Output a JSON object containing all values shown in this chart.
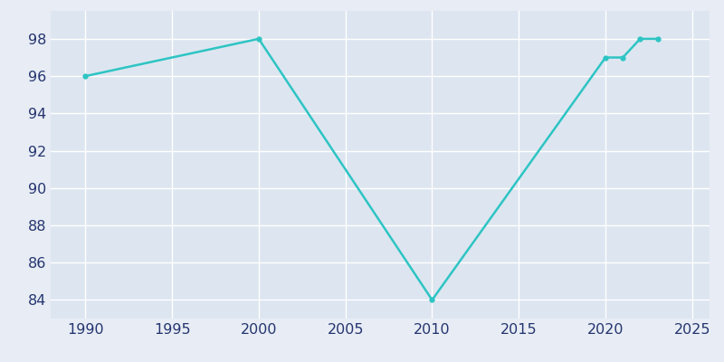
{
  "years": [
    1990,
    2000,
    2010,
    2020,
    2021,
    2022,
    2023
  ],
  "population": [
    96,
    98,
    84,
    97,
    97,
    98,
    98
  ],
  "line_color": "#2ec4c4",
  "marker_color": "#2ec4c4",
  "fig_bg_color": "#e8edf5",
  "axes_bg_color": "#dde6f0",
  "grid_color": "#ffffff",
  "xlabel": "",
  "ylabel": "",
  "xlim": [
    1988,
    2026
  ],
  "ylim": [
    83,
    99.5
  ],
  "xtick_values": [
    1990,
    1995,
    2000,
    2005,
    2010,
    2015,
    2020,
    2025
  ],
  "ytick_values": [
    84,
    86,
    88,
    90,
    92,
    94,
    96,
    98
  ],
  "tick_label_color": "#253570",
  "tick_fontsize": 11.5,
  "line_width": 1.8,
  "marker_size": 3.5
}
